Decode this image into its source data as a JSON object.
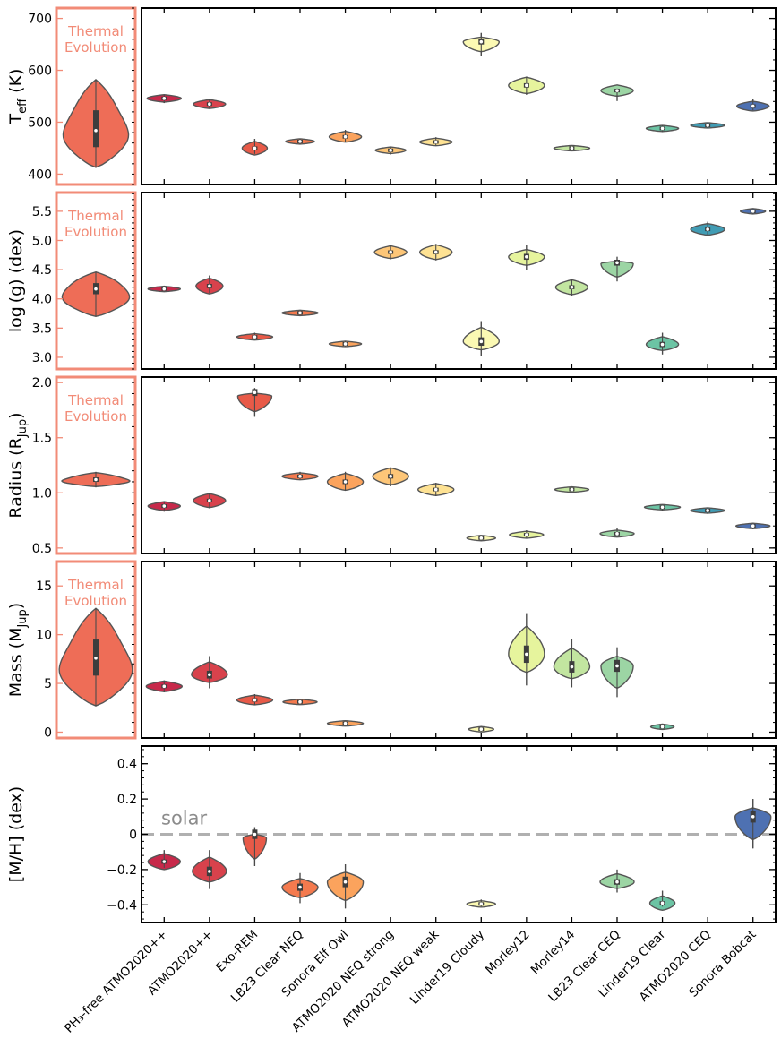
{
  "chart_data": {
    "type": "violin",
    "models": [
      "PH3-free ATMO2020++",
      "ATMO2020++",
      "Exo-REM",
      "LB23 Clear NEQ",
      "Sonora Elf Owl",
      "ATMO2020 NEQ strong",
      "ATMO2020 NEQ weak",
      "Linder19 Cloudy",
      "Morley12",
      "Morley14",
      "LB23 Clear CEQ",
      "Linder19 Clear",
      "ATMO2020 CEQ",
      "Sonora Bobcat"
    ],
    "xtick_labels": [
      "PH₃-free ATMO2020++",
      "ATMO2020++",
      "Exo-REM",
      "LB23 Clear NEQ",
      "Sonora Elf Owl",
      "ATMO2020 NEQ strong",
      "ATMO2020 NEQ weak",
      "Linder19 Cloudy",
      "Morley12",
      "Morley14",
      "LB23 Clear CEQ",
      "Linder19 Clear",
      "ATMO2020 CEQ",
      "Sonora Bobcat"
    ],
    "colors": [
      "#c7294a",
      "#d8424c",
      "#e85a48",
      "#f47a4e",
      "#fba35d",
      "#fdc678",
      "#fee293",
      "#fbf9b3",
      "#e6f49d",
      "#c2e5a0",
      "#9cd5a4",
      "#6cc4a4",
      "#419cb4",
      "#4e71b2"
    ],
    "thermal_evolution": {
      "label_line1": "Thermal",
      "label_line2": "Evolution",
      "color": "#ee6d57",
      "border_color": "#f28b77"
    },
    "panels": [
      {
        "ylabel_main": "T",
        "ylabel_sub": "eff",
        "ylabel_unit": " (K)",
        "ylim": [
          380,
          720
        ],
        "yticks": [
          400,
          500,
          600,
          700
        ],
        "thermal": {
          "median": 484,
          "lo": 413,
          "hi": 582,
          "q1": 452,
          "q3": 523,
          "hw": 34,
          "peak": 0.6
        },
        "violins": [
          {
            "median": 546,
            "lo": 537,
            "hi": 553,
            "hw": 19
          },
          {
            "median": 535,
            "lo": 526,
            "hi": 545,
            "hw": 18
          },
          {
            "median": 450,
            "lo": 439,
            "hi": 468,
            "hw": 14
          },
          {
            "median": 463,
            "lo": 458,
            "hi": 468,
            "hw": 16
          },
          {
            "median": 472,
            "lo": 462,
            "hi": 485,
            "hw": 18
          },
          {
            "median": 446,
            "lo": 438,
            "hi": 452,
            "hw": 17
          },
          {
            "median": 462,
            "lo": 455,
            "hi": 471,
            "hw": 18
          },
          {
            "median": 655,
            "lo": 628,
            "hi": 672,
            "hw": 20
          },
          {
            "median": 571,
            "lo": 553,
            "hi": 588,
            "hw": 20
          },
          {
            "median": 450,
            "lo": 447,
            "hi": 452,
            "hw": 20
          },
          {
            "median": 561,
            "lo": 541,
            "hi": 565,
            "hw": 18
          },
          {
            "median": 488,
            "lo": 481,
            "hi": 494,
            "hw": 18
          },
          {
            "median": 494,
            "lo": 488,
            "hi": 499,
            "hw": 19
          },
          {
            "median": 531,
            "lo": 523,
            "hi": 544,
            "hw": 18
          }
        ]
      },
      {
        "ylabel_main": "log (g)",
        "ylabel_sub": "",
        "ylabel_unit": " (dex)",
        "ylim": [
          2.8,
          5.82
        ],
        "yticks": [
          3.0,
          3.5,
          4.0,
          4.5,
          5.0,
          5.5
        ],
        "thermal": {
          "median": 4.17,
          "lo": 3.7,
          "hi": 4.46,
          "q1": 4.08,
          "q3": 4.27,
          "hw": 37,
          "peak": 0.47
        },
        "violins": [
          {
            "median": 4.17,
            "lo": 4.13,
            "hi": 4.22,
            "hw": 18
          },
          {
            "median": 4.22,
            "lo": 4.1,
            "hi": 4.4,
            "hw": 15
          },
          {
            "median": 3.35,
            "lo": 3.3,
            "hi": 3.42,
            "hw": 20
          },
          {
            "median": 3.76,
            "lo": 3.73,
            "hi": 3.79,
            "hw": 20
          },
          {
            "median": 3.23,
            "lo": 3.19,
            "hi": 3.27,
            "hw": 18
          },
          {
            "median": 4.8,
            "lo": 4.68,
            "hi": 4.92,
            "hw": 18
          },
          {
            "median": 4.8,
            "lo": 4.66,
            "hi": 4.94,
            "hw": 18
          },
          {
            "median": 3.27,
            "lo": 3.02,
            "hi": 3.62,
            "hw": 20
          },
          {
            "median": 4.72,
            "lo": 4.5,
            "hi": 4.92,
            "hw": 20
          },
          {
            "median": 4.2,
            "lo": 4.05,
            "hi": 4.33,
            "hw": 18
          },
          {
            "median": 4.62,
            "lo": 4.3,
            "hi": 4.72,
            "hw": 18
          },
          {
            "median": 3.22,
            "lo": 3.05,
            "hi": 3.42,
            "hw": 18
          },
          {
            "median": 5.19,
            "lo": 5.1,
            "hi": 5.32,
            "hw": 19
          },
          {
            "median": 5.5,
            "lo": 5.46,
            "hi": 5.52,
            "hw": 14
          }
        ]
      },
      {
        "ylabel_main": "Radius (R",
        "ylabel_sub": "Jup",
        "ylabel_unit": ")",
        "ylim": [
          0.45,
          2.05
        ],
        "yticks": [
          0.5,
          1.0,
          1.5,
          2.0
        ],
        "thermal": {
          "median": 1.12,
          "lo": 1.05,
          "hi": 1.19,
          "q1": 1.1,
          "q3": 1.14,
          "hw": 36,
          "peak": 0.55
        },
        "violins": [
          {
            "median": 0.88,
            "lo": 0.83,
            "hi": 0.92,
            "hw": 18
          },
          {
            "median": 0.93,
            "lo": 0.86,
            "hi": 1.0,
            "hw": 18
          },
          {
            "median": 1.91,
            "lo": 1.69,
            "hi": 1.95,
            "hw": 19
          },
          {
            "median": 1.15,
            "lo": 1.12,
            "hi": 1.19,
            "hw": 20
          },
          {
            "median": 1.1,
            "lo": 1.02,
            "hi": 1.19,
            "hw": 20
          },
          {
            "median": 1.15,
            "lo": 1.06,
            "hi": 1.23,
            "hw": 20
          },
          {
            "median": 1.03,
            "lo": 0.97,
            "hi": 1.09,
            "hw": 20
          },
          {
            "median": 0.59,
            "lo": 0.57,
            "hi": 0.61,
            "hw": 16
          },
          {
            "median": 0.62,
            "lo": 0.59,
            "hi": 0.66,
            "hw": 19
          },
          {
            "median": 1.03,
            "lo": 1.01,
            "hi": 1.05,
            "hw": 19
          },
          {
            "median": 0.63,
            "lo": 0.61,
            "hi": 0.68,
            "hw": 19
          },
          {
            "median": 0.87,
            "lo": 0.84,
            "hi": 0.89,
            "hw": 20
          },
          {
            "median": 0.84,
            "lo": 0.81,
            "hi": 0.86,
            "hw": 19
          },
          {
            "median": 0.7,
            "lo": 0.67,
            "hi": 0.72,
            "hw": 19
          }
        ]
      },
      {
        "ylabel_main": "Mass (M",
        "ylabel_sub": "Jup",
        "ylabel_unit": ")",
        "ylim": [
          -0.6,
          17.5
        ],
        "yticks": [
          0,
          5,
          10,
          15
        ],
        "thermal": {
          "median": 7.6,
          "lo": 2.7,
          "hi": 12.7,
          "q1": 5.8,
          "q3": 9.5,
          "hw": 38,
          "peak": 0.6
        },
        "violins": [
          {
            "median": 4.7,
            "lo": 4.1,
            "hi": 5.3,
            "hw": 20
          },
          {
            "median": 5.9,
            "lo": 4.5,
            "hi": 7.8,
            "hw": 20
          },
          {
            "median": 3.3,
            "lo": 2.8,
            "hi": 3.9,
            "hw": 20
          },
          {
            "median": 3.1,
            "lo": 2.9,
            "hi": 3.4,
            "hw": 19
          },
          {
            "median": 0.9,
            "lo": 0.7,
            "hi": 1.05,
            "hw": 20
          },
          {
            "median": null,
            "lo": null,
            "hi": null,
            "hw": 0
          },
          {
            "median": null,
            "lo": null,
            "hi": null,
            "hw": 0
          },
          {
            "median": 0.3,
            "lo": 0.1,
            "hi": 0.5,
            "hw": 14
          },
          {
            "median": 8.0,
            "lo": 4.8,
            "hi": 12.2,
            "hw": 20
          },
          {
            "median": 6.7,
            "lo": 4.6,
            "hi": 9.5,
            "hw": 20
          },
          {
            "median": 6.8,
            "lo": 3.6,
            "hi": 8.7,
            "hw": 18
          },
          {
            "median": 0.55,
            "lo": 0.35,
            "hi": 0.7,
            "hw": 13
          },
          {
            "median": null,
            "lo": null,
            "hi": null,
            "hw": 0
          },
          {
            "median": null,
            "lo": null,
            "hi": null,
            "hw": 0
          }
        ]
      },
      {
        "ylabel_main": "[M/H] (dex)",
        "ylabel_sub": "",
        "ylabel_unit": "",
        "ylim": [
          -0.5,
          0.5
        ],
        "yticks": [
          -0.4,
          -0.2,
          0,
          0.2,
          0.4
        ],
        "solar_label": "solar",
        "violins": [
          {
            "median": -0.155,
            "lo": -0.19,
            "hi": -0.09,
            "hw": 18
          },
          {
            "median": -0.21,
            "lo": -0.31,
            "hi": -0.09,
            "hw": 19
          },
          {
            "median": 0.0,
            "lo": -0.18,
            "hi": 0.04,
            "hw": 13
          },
          {
            "median": -0.3,
            "lo": -0.39,
            "hi": -0.22,
            "hw": 20
          },
          {
            "median": -0.27,
            "lo": -0.42,
            "hi": -0.17,
            "hw": 20
          },
          {
            "median": null,
            "lo": null,
            "hi": null,
            "hw": 0
          },
          {
            "median": null,
            "lo": null,
            "hi": null,
            "hw": 0
          },
          {
            "median": -0.395,
            "lo": -0.41,
            "hi": -0.37,
            "hw": 16
          },
          {
            "median": null,
            "lo": null,
            "hi": null,
            "hw": 0
          },
          {
            "median": null,
            "lo": null,
            "hi": null,
            "hw": 0
          },
          {
            "median": -0.27,
            "lo": -0.33,
            "hi": -0.2,
            "hw": 19
          },
          {
            "median": -0.39,
            "lo": -0.41,
            "hi": -0.32,
            "hw": 14
          },
          {
            "median": null,
            "lo": null,
            "hi": null,
            "hw": 0
          },
          {
            "median": 0.1,
            "lo": -0.08,
            "hi": 0.2,
            "hw": 20
          }
        ]
      }
    ]
  }
}
